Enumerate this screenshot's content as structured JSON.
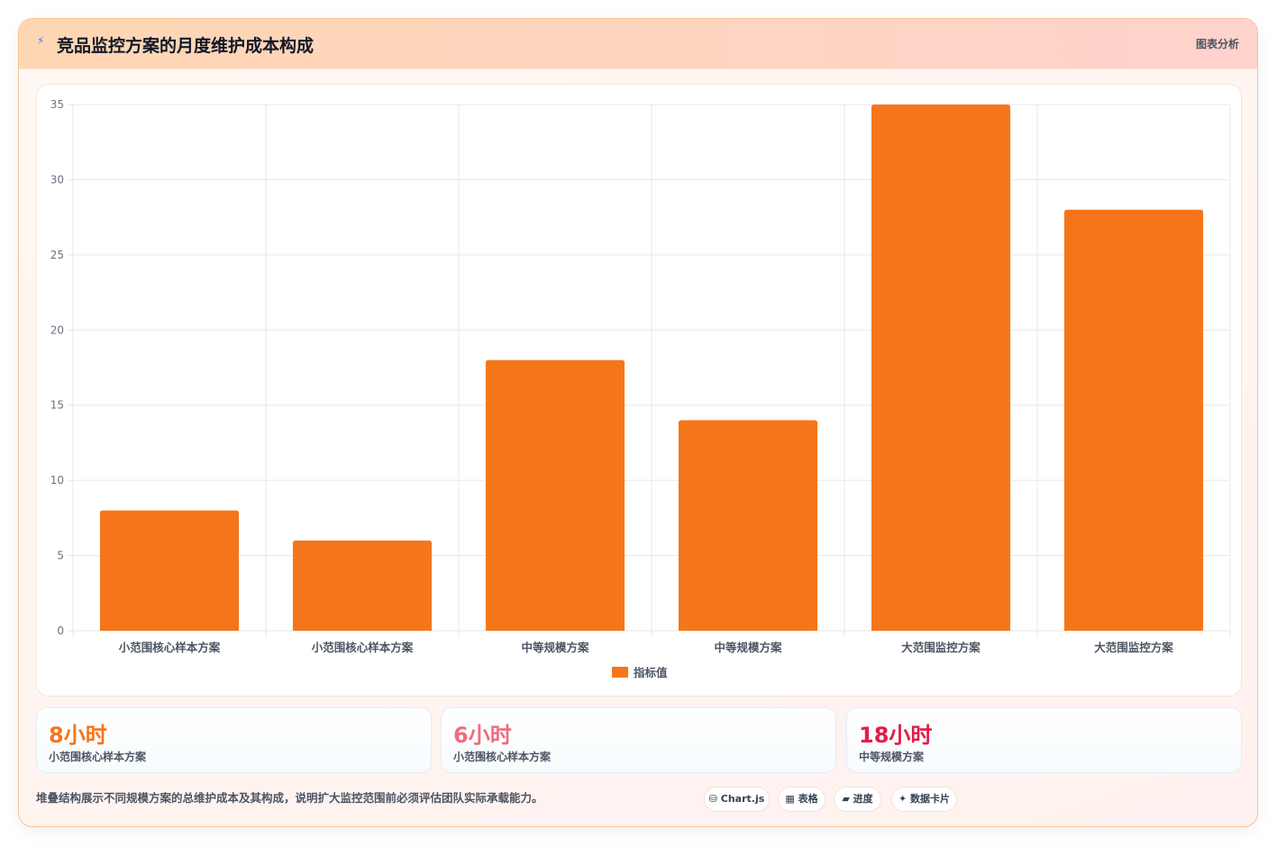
{
  "header": {
    "icon": "bolt-icon",
    "title": "竞品监控方案的月度维护成本构成",
    "tag": "图表分析"
  },
  "chart_data": {
    "type": "bar",
    "categories": [
      "小范围核心样本方案",
      "小范围核心样本方案",
      "中等规模方案",
      "中等规模方案",
      "大范围监控方案",
      "大范围监控方案"
    ],
    "series": [
      {
        "name": "指标值",
        "values": [
          8,
          6,
          18,
          14,
          35,
          28
        ],
        "color": "#f5761a"
      }
    ],
    "ylim": [
      0,
      35
    ],
    "yticks": [
      0,
      5,
      10,
      15,
      20,
      25,
      30,
      35
    ],
    "grid": true,
    "legend_position": "bottom"
  },
  "stats": [
    {
      "value": "8小时",
      "label": "小范围核心样本方案",
      "color": "#f5761a"
    },
    {
      "value": "6小时",
      "label": "小范围核心样本方案",
      "color": "#f26b7e"
    },
    {
      "value": "18小时",
      "label": "中等规模方案",
      "color": "#e11d48"
    }
  ],
  "footnote": "堆叠结构展示不同规模方案的总维护成本及其构成，说明扩大监控范围前必须评估团队实际承载能力。",
  "chips": [
    {
      "icon": "database-icon",
      "glyph": "⛁",
      "label": "Chart.js"
    },
    {
      "icon": "table-icon",
      "glyph": "▦",
      "label": "表格"
    },
    {
      "icon": "progress-icon",
      "glyph": "▰",
      "label": "进度"
    },
    {
      "icon": "sparkle-icon",
      "glyph": "✦",
      "label": "数据卡片"
    }
  ]
}
